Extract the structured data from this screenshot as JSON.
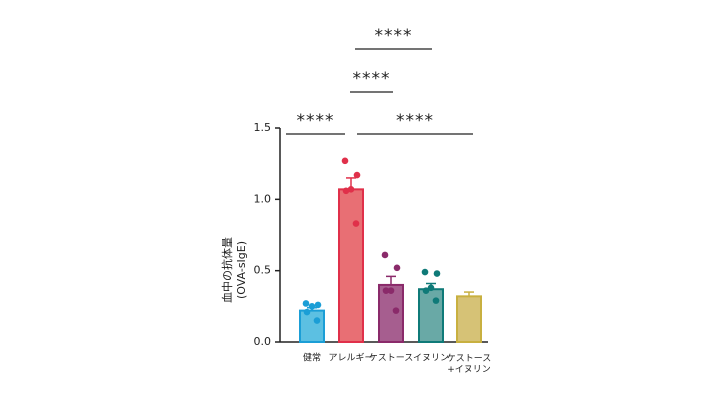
{
  "chart_data": {
    "type": "bar",
    "y_label": [
      "血中の抗体量",
      "(OVA-sIgE)"
    ],
    "categories": [
      "健常",
      "アレルギー",
      "ケストース",
      "イヌリン",
      "ケストース\n+イヌリン"
    ],
    "values": [
      0.22,
      1.07,
      0.4,
      0.37,
      0.32
    ],
    "errors": [
      0.02,
      0.08,
      0.06,
      0.04,
      0.03
    ],
    "points": [
      [
        0.27,
        0.26,
        0.25,
        0.21,
        0.15
      ],
      [
        1.27,
        1.17,
        1.07,
        1.06,
        0.83
      ],
      [
        0.61,
        0.52,
        0.36,
        0.36,
        0.22
      ],
      [
        0.49,
        0.48,
        0.38,
        0.36,
        0.29
      ],
      []
    ],
    "fill_colors": [
      "#5cc0e2",
      "#e86f74",
      "#a65e8f",
      "#69a9a6",
      "#d6c276"
    ],
    "stroke_colors": [
      "#1b9ed6",
      "#e0304a",
      "#8a2a6a",
      "#0f7a78",
      "#c8b040"
    ],
    "ylim": [
      0,
      1.5
    ],
    "yticks": [
      {
        "value": 0,
        "label": "0.0"
      },
      0.5,
      {
        "value": 1,
        "label": "1.0"
      },
      1.5
    ],
    "significance": [
      "****",
      "****",
      "****",
      "****"
    ]
  }
}
